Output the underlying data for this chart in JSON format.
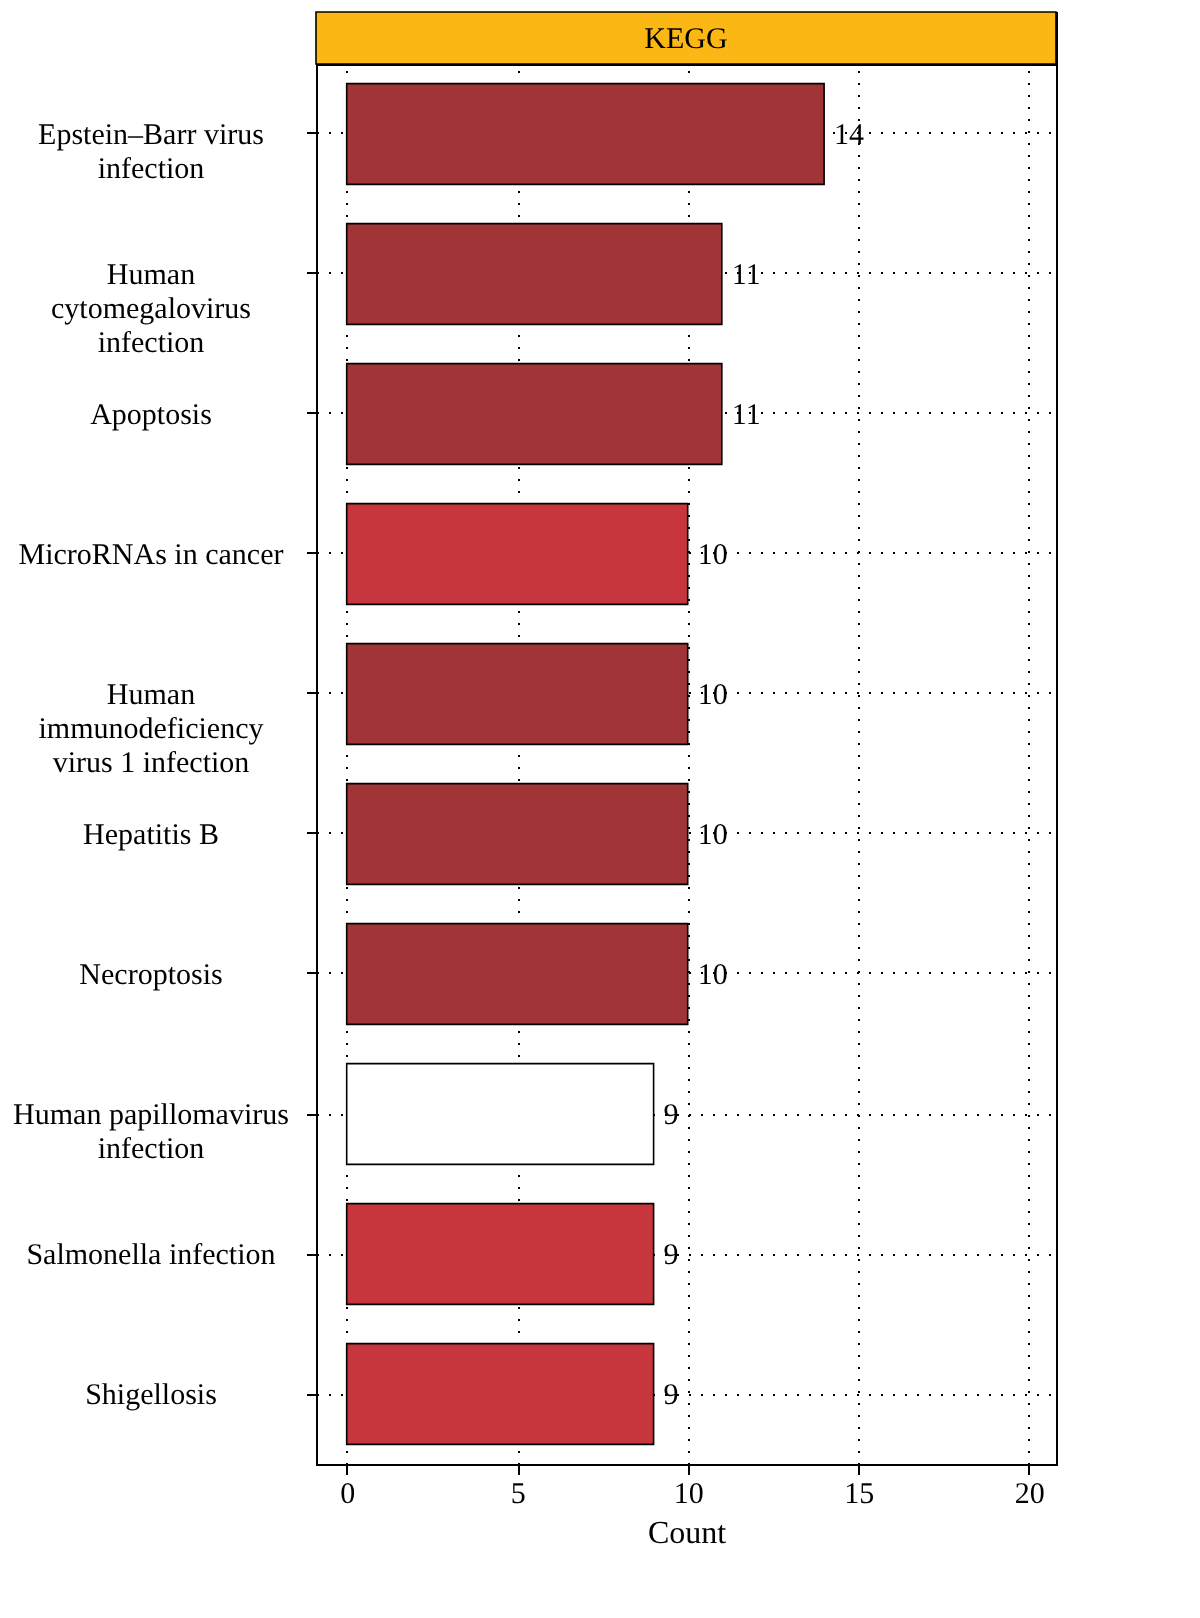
{
  "chart_data": {
    "type": "bar",
    "orientation": "horizontal",
    "title": "KEGG",
    "xlabel": "Count",
    "categories": [
      "Epstein–Barr virus infection",
      "Human cytomegalovirus infection",
      "Apoptosis",
      "MicroRNAs in cancer",
      "Human immunodeficiency virus 1 infection",
      "Hepatitis B",
      "Necroptosis",
      "Human papillomavirus infection",
      "Salmonella infection",
      "Shigellosis"
    ],
    "values": [
      14,
      11,
      11,
      10,
      10,
      10,
      10,
      9,
      9,
      9
    ],
    "colors": [
      "#a03436",
      "#a03436",
      "#a03436",
      "#c6363c",
      "#a03436",
      "#a03436",
      "#a03436",
      "#ffffff",
      "#c6363c",
      "#c6363c"
    ],
    "xlim": [
      -0.9,
      20.8
    ],
    "xticks": [
      0,
      5,
      10,
      15,
      20
    ],
    "grid": true,
    "data_labels": true,
    "legend": false
  }
}
